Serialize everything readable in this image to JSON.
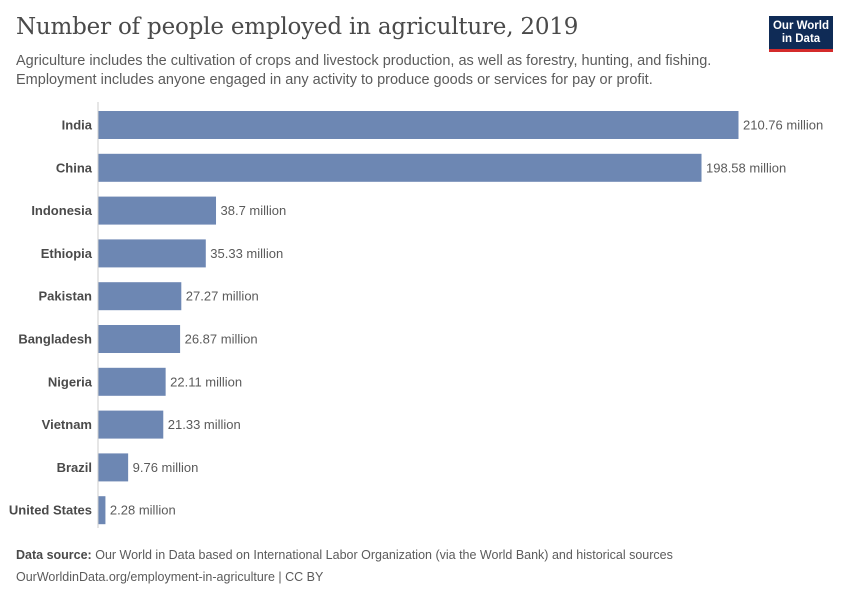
{
  "header": {
    "title": "Number of people employed in agriculture, 2019",
    "subtitle": "Agriculture includes the cultivation of crops and livestock production, as well as forestry, hunting, and fishing. Employment includes anyone engaged in any activity to produce goods or services for pay or profit."
  },
  "logo": {
    "line1": "Our World",
    "line2": "in Data",
    "bg_color": "#0f2b56",
    "accent_color": "#d42b2b"
  },
  "chart_data": {
    "type": "bar",
    "orientation": "horizontal",
    "categories": [
      "India",
      "China",
      "Indonesia",
      "Ethiopia",
      "Pakistan",
      "Bangladesh",
      "Nigeria",
      "Vietnam",
      "Brazil",
      "United States"
    ],
    "values": [
      210.76,
      198.58,
      38.7,
      35.33,
      27.27,
      26.87,
      22.11,
      21.33,
      9.76,
      2.28
    ],
    "value_labels": [
      "210.76 million",
      "198.58 million",
      "38.7 million",
      "35.33 million",
      "27.27 million",
      "26.87 million",
      "22.11 million",
      "21.33 million",
      "9.76 million",
      "2.28 million"
    ],
    "title": "Number of people employed in agriculture, 2019",
    "xlabel": "",
    "ylabel": "",
    "xlim": [
      0,
      210.76
    ],
    "bar_color": "#6d87b3",
    "grid": false,
    "legend": "none"
  },
  "footer": {
    "source_label": "Data source:",
    "source_text": "Our World in Data based on International Labor Organization (via the World Bank) and historical sources",
    "url_license": "OurWorldinData.org/employment-in-agriculture | CC BY"
  }
}
